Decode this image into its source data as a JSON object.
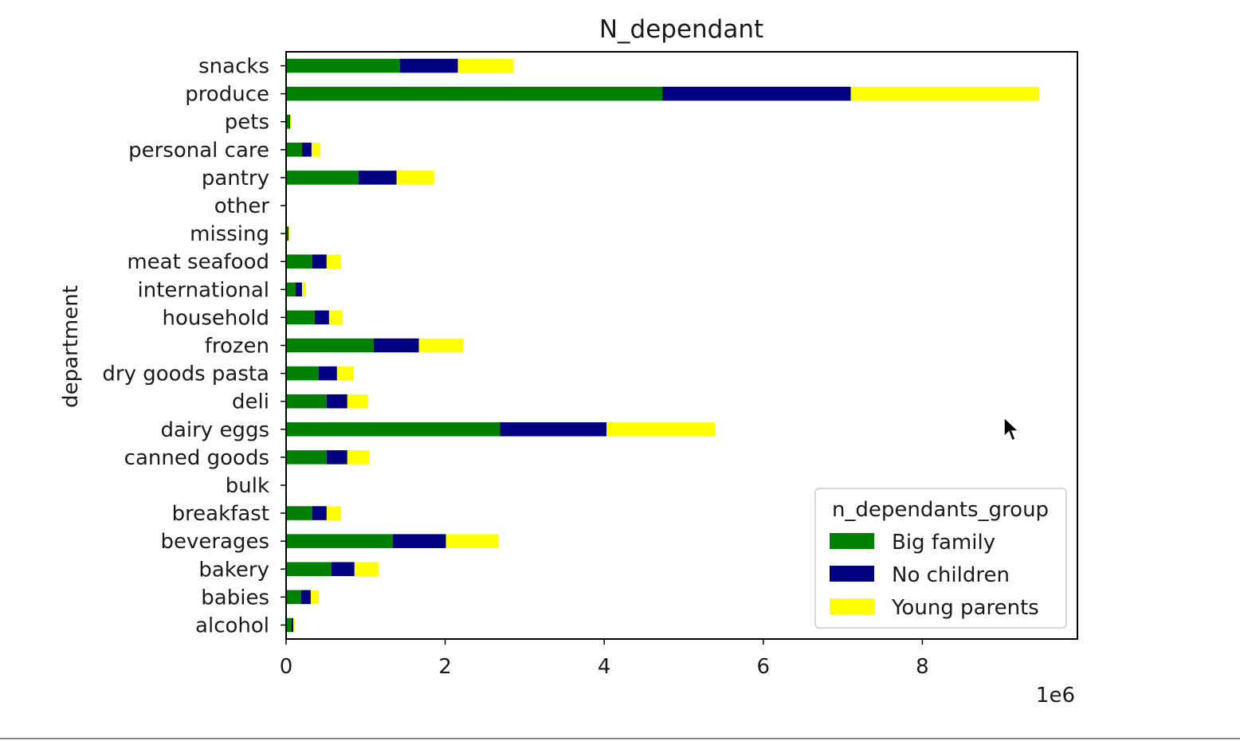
{
  "chart_data": {
    "type": "bar",
    "orientation": "horizontal",
    "stacked": true,
    "title": "N_dependant",
    "ylabel": "department",
    "xlabel": "",
    "x_offset_label": "1e6",
    "x_ticks": [
      0,
      2,
      4,
      6,
      8
    ],
    "xlim": [
      0,
      9.95
    ],
    "grid": false,
    "legend_placement": "lower right",
    "categories": [
      "alcohol",
      "babies",
      "bakery",
      "beverages",
      "breakfast",
      "bulk",
      "canned goods",
      "dairy eggs",
      "deli",
      "dry goods pasta",
      "frozen",
      "household",
      "international",
      "meat seafood",
      "missing",
      "other",
      "pantry",
      "personal care",
      "pets",
      "produce",
      "snacks"
    ],
    "legend": {
      "title": "n_dependants_group"
    },
    "series": [
      {
        "name": "Big family",
        "color": "#008000",
        "values": [
          0.07,
          0.19,
          0.57,
          1.34,
          0.33,
          0.01,
          0.51,
          2.69,
          0.51,
          0.41,
          1.1,
          0.36,
          0.12,
          0.33,
          0.02,
          0.01,
          0.91,
          0.2,
          0.04,
          4.73,
          1.43
        ]
      },
      {
        "name": "No children",
        "color": "#000080",
        "values": [
          0.02,
          0.12,
          0.29,
          0.67,
          0.18,
          0.0,
          0.26,
          1.34,
          0.26,
          0.23,
          0.57,
          0.18,
          0.08,
          0.18,
          0.01,
          0.0,
          0.48,
          0.12,
          0.01,
          2.37,
          0.73
        ]
      },
      {
        "name": "Young parents",
        "color": "#ffff00",
        "values": [
          0.02,
          0.1,
          0.3,
          0.66,
          0.18,
          0.0,
          0.28,
          1.36,
          0.26,
          0.21,
          0.56,
          0.17,
          0.05,
          0.18,
          0.01,
          0.0,
          0.47,
          0.11,
          0.01,
          2.37,
          0.7
        ]
      }
    ]
  }
}
